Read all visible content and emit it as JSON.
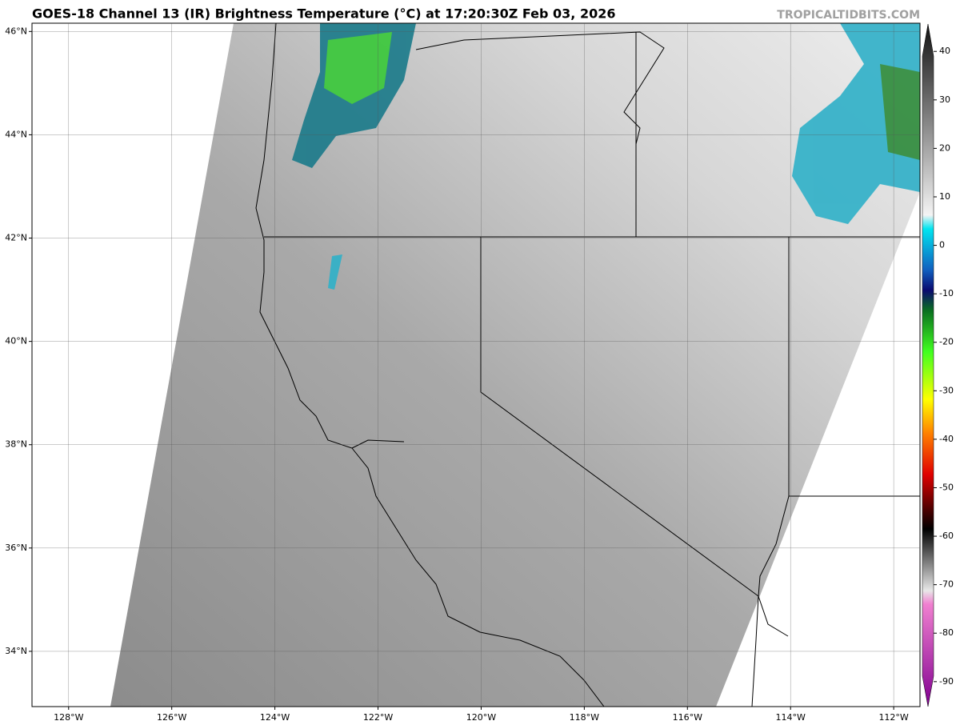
{
  "map": {
    "title": "GOES-18 Channel 13 (IR) Brightness Temperature (°C) at 17:20:30Z Feb 03, 2026",
    "credit": "TROPICALTIDBITS.COM",
    "xlim": [
      -128.71,
      -111.49
    ],
    "ylim": [
      32.93,
      46.16
    ],
    "xticks": [
      {
        "value": -128,
        "label": "128°W"
      },
      {
        "value": -126,
        "label": "126°W"
      },
      {
        "value": -124,
        "label": "124°W"
      },
      {
        "value": -122,
        "label": "122°W"
      },
      {
        "value": -120,
        "label": "120°W"
      },
      {
        "value": -118,
        "label": "118°W"
      },
      {
        "value": -116,
        "label": "116°W"
      },
      {
        "value": -114,
        "label": "114°W"
      },
      {
        "value": -112,
        "label": "112°W"
      }
    ],
    "yticks": [
      {
        "value": 34,
        "label": "34°N"
      },
      {
        "value": 36,
        "label": "36°N"
      },
      {
        "value": 38,
        "label": "38°N"
      },
      {
        "value": 40,
        "label": "40°N"
      },
      {
        "value": 42,
        "label": "42°N"
      },
      {
        "value": 44,
        "label": "44°N"
      },
      {
        "value": 46,
        "label": "46°N"
      }
    ],
    "grid": true,
    "colorbar": {
      "lim": [
        44,
        -93
      ],
      "ticks": [
        40,
        30,
        20,
        10,
        0,
        -10,
        -20,
        -30,
        -40,
        -50,
        -60,
        -70,
        -80,
        -90
      ]
    }
  }
}
